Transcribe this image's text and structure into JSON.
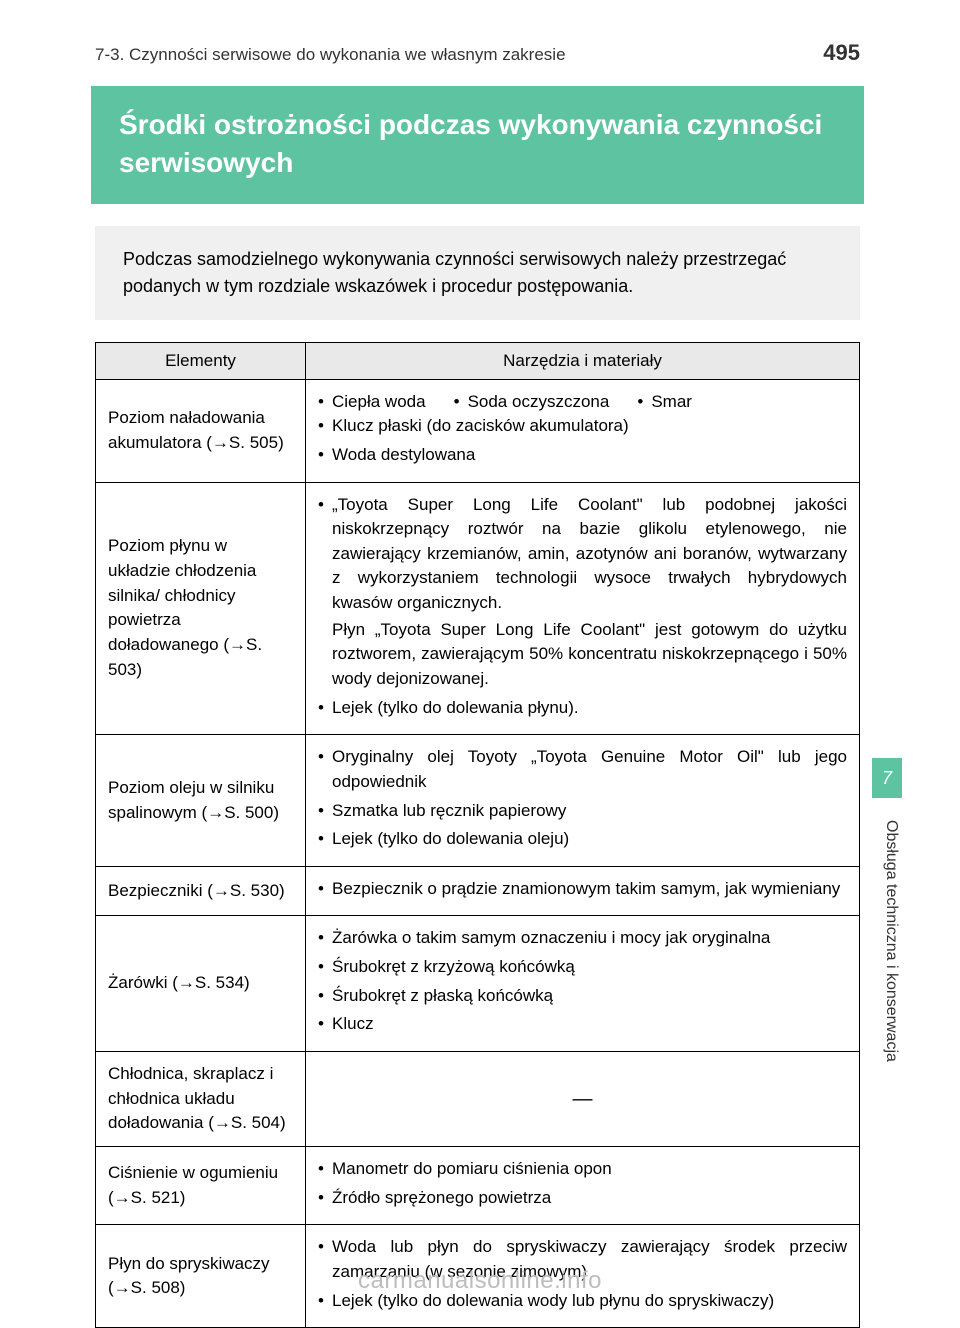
{
  "header": {
    "section": "7-3. Czynności serwisowe do wykonania we własnym zakresie",
    "page_number": "495"
  },
  "title": "Środki ostrożności podczas wykonywania czynności serwisowych",
  "intro": "Podczas samodzielnego wykonywania czynności serwisowych należy przestrzegać podanych w tym rozdziale wskazówek i procedur postępowania.",
  "table_headers": {
    "col1": "Elementy",
    "col2": "Narzędzia i materiały"
  },
  "rows": [
    {
      "element": "Poziom naładowania akumulatora (→S. 505)",
      "tools_inline": [
        "Ciepła woda",
        "Soda oczyszczona",
        "Smar"
      ],
      "tools_block": [
        "Klucz płaski (do zacisków akumulatora)",
        "Woda destylowana"
      ]
    },
    {
      "element": "Poziom płynu w układzie chłodzenia silnika/ chłodnicy powietrza doładowanego (→S. 503)",
      "tools_block": [
        "„Toyota Super Long Life Coolant\" lub podobnej jakości niskokrzepnący roztwór na bazie glikolu etylenowego, nie zawierający krzemianów, amin, azotynów ani boranów, wytwarzany z wykorzystaniem technologii wysoce trwałych hybrydowych kwasów organicznych.",
        "Lejek (tylko do dolewania płynu)."
      ],
      "sub_note": "Płyn „Toyota Super Long Life Coolant\" jest gotowym do użytku roztworem, zawierającym 50% koncentratu niskokrzepnącego i 50% wody dejonizowanej."
    },
    {
      "element": "Poziom oleju w silniku spalinowym (→S. 500)",
      "tools_block": [
        "Oryginalny olej Toyoty „Toyota Genuine Motor Oil\" lub jego odpowiednik",
        "Szmatka lub ręcznik papierowy",
        "Lejek (tylko do dolewania oleju)"
      ]
    },
    {
      "element": "Bezpieczniki (→S. 530)",
      "tools_block": [
        "Bezpiecznik o prądzie znamionowym takim samym, jak wymieniany"
      ]
    },
    {
      "element": "Żarówki (→S. 534)",
      "tools_block": [
        "Żarówka o takim samym oznaczeniu i mocy jak oryginalna",
        "Śrubokręt z krzyżową końcówką",
        "Śrubokręt z płaską końcówką",
        "Klucz"
      ]
    },
    {
      "element": "Chłodnica, skraplacz i chłodnica układu doładowania (→S. 504)",
      "dash": "—"
    },
    {
      "element": "Ciśnienie w ogumieniu (→S. 521)",
      "tools_block": [
        "Manometr do pomiaru ciśnienia opon",
        "Źródło sprężonego powietrza"
      ]
    },
    {
      "element": "Płyn do spryskiwaczy (→S. 508)",
      "tools_block": [
        "Woda lub płyn do spryskiwaczy zawierający środek przeciw zamarzaniu (w sezonie zimowym)",
        "Lejek (tylko do dolewania wody lub płynu do spryskiwaczy)"
      ]
    }
  ],
  "side_tab": "7",
  "side_text": "Obsługa techniczna i konserwacja",
  "footer_url": "carmanualsonline.info",
  "colors": {
    "accent": "#5ec3a1",
    "intro_bg": "#f0f0f0",
    "th_bg": "#e9e9e9",
    "footer_text": "#bdbdbd"
  }
}
